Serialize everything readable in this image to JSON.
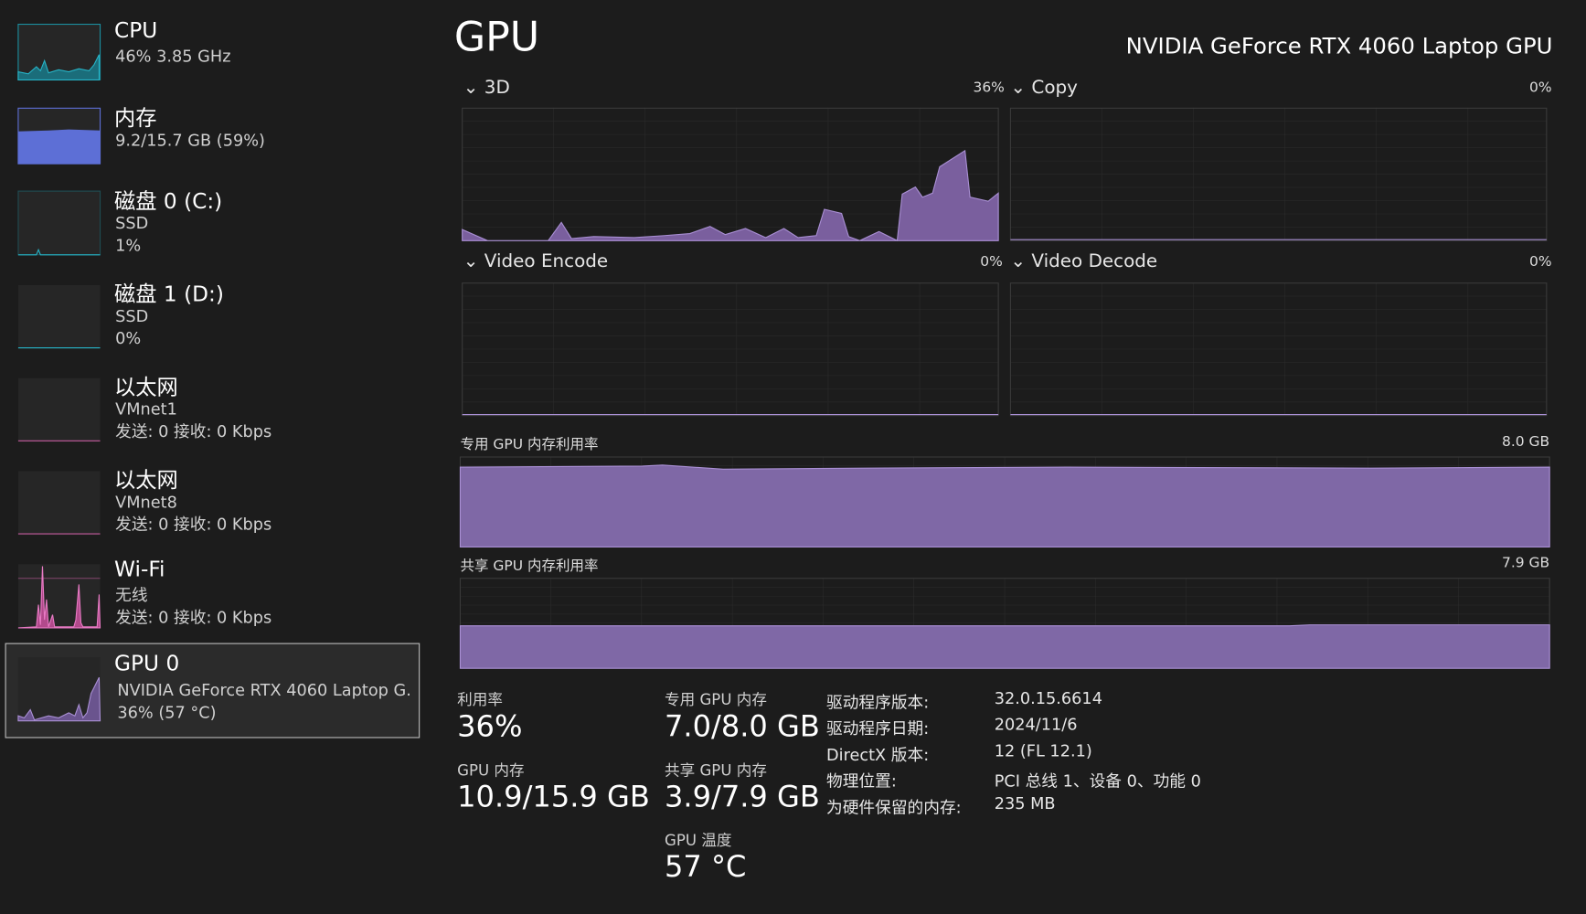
{
  "sidebar": [
    {
      "title": "CPU",
      "lines": [
        "46%  3.85 GHz"
      ]
    },
    {
      "title": "内存",
      "lines": [
        "9.2/15.7 GB (59%)"
      ]
    },
    {
      "title": "磁盘 0 (C:)",
      "lines": [
        "SSD",
        "1%"
      ]
    },
    {
      "title": "磁盘 1 (D:)",
      "lines": [
        "SSD",
        "0%"
      ]
    },
    {
      "title": "以太网",
      "lines": [
        "VMnet1",
        "发送: 0 接收: 0 Kbps"
      ]
    },
    {
      "title": "以太网",
      "lines": [
        "VMnet8",
        "发送: 0 接收: 0 Kbps"
      ]
    },
    {
      "title": "Wi-Fi",
      "lines": [
        "无线",
        "发送: 0 接收: 0 Kbps"
      ]
    },
    {
      "title": "GPU 0",
      "lines": [
        "NVIDIA GeForce RTX 4060 Laptop G...",
        "36% (57 °C)"
      ]
    }
  ],
  "header": {
    "title": "GPU",
    "device": "NVIDIA GeForce RTX 4060 Laptop GPU"
  },
  "graphs": [
    {
      "label": "3D",
      "value": "36%"
    },
    {
      "label": "Copy",
      "value": "0%"
    },
    {
      "label": "Video Encode",
      "value": "0%"
    },
    {
      "label": "Video Decode",
      "value": "0%"
    }
  ],
  "memory_graphs": [
    {
      "label": "专用 GPU 内存利用率",
      "value": "8.0 GB"
    },
    {
      "label": "共享 GPU 内存利用率",
      "value": "7.9 GB"
    }
  ],
  "stats": [
    {
      "label": "利用率",
      "value": "36%"
    },
    {
      "label": "GPU 内存",
      "value": "10.9/15.9 GB"
    },
    {
      "label": "专用 GPU 内存",
      "value": "7.0/8.0 GB"
    },
    {
      "label": "共享 GPU 内存",
      "value": "3.9/7.9 GB"
    },
    {
      "label": "GPU 温度",
      "value": "57 °C"
    }
  ],
  "details": [
    {
      "label": "驱动程序版本:",
      "value": "32.0.15.6614"
    },
    {
      "label": "驱动程序日期:",
      "value": "2024/11/6"
    },
    {
      "label": "DirectX 版本:",
      "value": "12 (FL 12.1)"
    },
    {
      "label": "物理位置:",
      "value": "PCI 总线 1、设备 0、功能 0"
    },
    {
      "label": "为硬件保留的内存:",
      "value": "235 MB"
    }
  ]
}
